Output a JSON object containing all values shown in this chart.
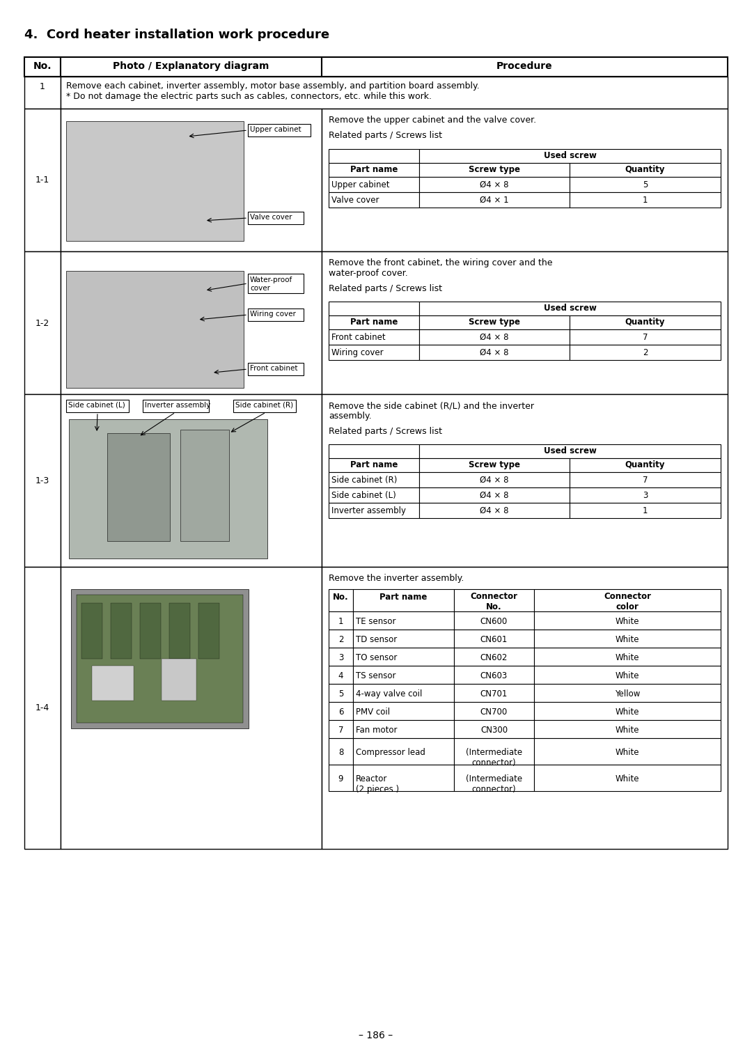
{
  "title": "4.  Cord heater installation work procedure",
  "page_number": "– 186 –",
  "background_color": "#ffffff",
  "rows": [
    {
      "no": "1",
      "text": "Remove each cabinet, inverter assembly, motor base assembly, and partition board assembly.\n* Do not damage the electric parts such as cables, connectors, etc. while this work.",
      "colspan": true
    },
    {
      "no": "1-1",
      "image_labels": [
        [
          "Upper cabinet",
          "right"
        ],
        [
          "Valve cover",
          "right"
        ]
      ],
      "procedure_intro": [
        "Remove the upper cabinet and the valve cover.",
        "",
        "Related parts / Screws list"
      ],
      "screw_table": {
        "data": [
          [
            "Upper cabinet",
            "Ø4 × 8",
            "5"
          ],
          [
            "Valve cover",
            "Ø4 × 1",
            "1"
          ]
        ]
      }
    },
    {
      "no": "1-2",
      "image_labels": [
        [
          "Water-proof\ncover",
          "right"
        ],
        [
          "Wiring cover",
          "right"
        ],
        [
          "Front cabinet",
          "right"
        ]
      ],
      "procedure_intro": [
        "Remove the front cabinet, the wiring cover and the",
        "water-proof cover.",
        "",
        "Related parts / Screws list"
      ],
      "screw_table": {
        "data": [
          [
            "Front cabinet",
            "Ø4 × 8",
            "7"
          ],
          [
            "Wiring cover",
            "Ø4 × 8",
            "2"
          ]
        ]
      }
    },
    {
      "no": "1-3",
      "image_labels_top": [
        "Side cabinet (L)",
        "Inverter assembly",
        "Side cabinet (R)"
      ],
      "procedure_intro": [
        "Remove the side cabinet (R/L) and the inverter",
        "assembly.",
        "",
        "Related parts / Screws list"
      ],
      "screw_table": {
        "data": [
          [
            "Side cabinet (R)",
            "Ø4 × 8",
            "7"
          ],
          [
            "Side cabinet (L)",
            "Ø4 × 8",
            "3"
          ],
          [
            "Inverter assembly",
            "Ø4 × 8",
            "1"
          ]
        ]
      }
    },
    {
      "no": "1-4",
      "procedure_intro": [
        "Remove the inverter assembly."
      ],
      "connector_table": {
        "headers": [
          "No.",
          "Part name",
          "Connector\nNo.",
          "Connector\ncolor"
        ],
        "data": [
          [
            "1",
            "TE sensor",
            "CN600",
            "White"
          ],
          [
            "2",
            "TD sensor",
            "CN601",
            "White"
          ],
          [
            "3",
            "TO sensor",
            "CN602",
            "White"
          ],
          [
            "4",
            "TS sensor",
            "CN603",
            "White"
          ],
          [
            "5",
            "4-way valve coil",
            "CN701",
            "Yellow"
          ],
          [
            "6",
            "PMV coil",
            "CN700",
            "White"
          ],
          [
            "7",
            "Fan motor",
            "CN300",
            "White"
          ],
          [
            "8",
            "Compressor lead",
            "(Intermediate\nconnector)",
            "White"
          ],
          [
            "9",
            "Reactor\n(2 pieces.)",
            "(Intermediate\nconnector)",
            "White"
          ]
        ]
      }
    }
  ]
}
